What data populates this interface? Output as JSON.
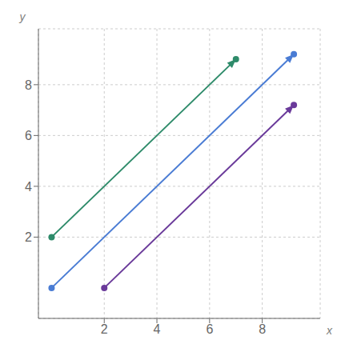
{
  "chart_data": {
    "type": "line",
    "title": "",
    "xlabel": "x",
    "ylabel": "y",
    "xlim": [
      -0.5,
      10.2
    ],
    "ylim": [
      -1.2,
      10.2
    ],
    "xticks": [
      2,
      4,
      6,
      8
    ],
    "yticks": [
      2,
      4,
      6,
      8
    ],
    "grid": true,
    "series": [
      {
        "color": "#2e8b6a",
        "marker": "circle",
        "x": [
          0,
          7.0
        ],
        "values": [
          2,
          9.0
        ]
      },
      {
        "color": "#4a7cd4",
        "marker": "circle",
        "x": [
          0,
          9.2
        ],
        "values": [
          0,
          9.2
        ]
      },
      {
        "color": "#6a3a9a",
        "marker": "circle",
        "x": [
          2,
          9.2
        ],
        "values": [
          0,
          7.2
        ]
      }
    ]
  }
}
